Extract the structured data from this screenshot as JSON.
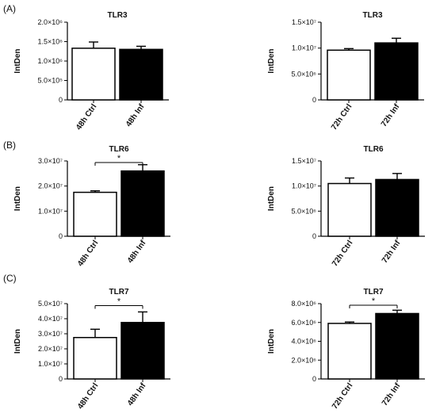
{
  "panels": [
    {
      "label": "(A)"
    },
    {
      "label": "(B)"
    },
    {
      "label": "(C)"
    }
  ],
  "chart_data": [
    {
      "type": "bar",
      "title": "TLR3",
      "ylabel": "IntDen",
      "categories": [
        "48h Ctrl",
        "48h Inf"
      ],
      "values": [
        1330000,
        1300000
      ],
      "errors": [
        160000,
        80000
      ],
      "colors": [
        "#ffffff",
        "#000000"
      ],
      "ylim": [
        0,
        2000000
      ],
      "yticks": [
        0,
        500000,
        1000000,
        1500000,
        2000000
      ],
      "ytick_labels": [
        "0",
        "5.0×10⁵",
        "1.0×10⁶",
        "1.5×10⁶",
        "2.0×10⁶"
      ],
      "significance": ""
    },
    {
      "type": "bar",
      "title": "TLR3",
      "ylabel": "IntDen",
      "categories": [
        "72h Ctrl",
        "72h Inf"
      ],
      "values": [
        9600000,
        11000000
      ],
      "errors": [
        300000,
        900000
      ],
      "colors": [
        "#ffffff",
        "#000000"
      ],
      "ylim": [
        0,
        15000000
      ],
      "yticks": [
        0,
        5000000,
        10000000,
        15000000
      ],
      "ytick_labels": [
        "0",
        "5.0×10⁶",
        "1.0×10⁷",
        "1.5×10⁷"
      ],
      "significance": ""
    },
    {
      "type": "bar",
      "title": "TLR6",
      "ylabel": "IntDen",
      "categories": [
        "48h Ctrl",
        "48h Inf"
      ],
      "values": [
        17500000,
        26000000
      ],
      "errors": [
        600000,
        2500000
      ],
      "colors": [
        "#ffffff",
        "#000000"
      ],
      "ylim": [
        0,
        30000000
      ],
      "yticks": [
        0,
        10000000,
        20000000,
        30000000
      ],
      "ytick_labels": [
        "0",
        "1.0×10⁷",
        "2.0×10⁷",
        "3.0×10⁷"
      ],
      "significance": "*"
    },
    {
      "type": "bar",
      "title": "TLR6",
      "ylabel": "IntDen",
      "categories": [
        "72h Ctrl",
        "72h Inf"
      ],
      "values": [
        10500000,
        11300000
      ],
      "errors": [
        1100000,
        1200000
      ],
      "colors": [
        "#ffffff",
        "#000000"
      ],
      "ylim": [
        0,
        15000000
      ],
      "yticks": [
        0,
        5000000,
        10000000,
        15000000
      ],
      "ytick_labels": [
        "0",
        "5.0×10⁶",
        "1.0×10⁷",
        "1.5×10⁷"
      ],
      "significance": ""
    },
    {
      "type": "bar",
      "title": "TLR7",
      "ylabel": "IntDen",
      "categories": [
        "48h Ctrl",
        "48h Inf"
      ],
      "values": [
        27500000,
        37500000
      ],
      "errors": [
        5500000,
        7000000
      ],
      "colors": [
        "#ffffff",
        "#000000"
      ],
      "ylim": [
        0,
        50000000
      ],
      "yticks": [
        0,
        10000000,
        20000000,
        30000000,
        40000000,
        50000000
      ],
      "ytick_labels": [
        "0",
        "1.0×10⁷",
        "2.0×10⁷",
        "3.0×10⁷",
        "4.0×10⁷",
        "5.0×10⁷"
      ],
      "significance": "*"
    },
    {
      "type": "bar",
      "title": "TLR7",
      "ylabel": "IntDen",
      "categories": [
        "72h Ctrl",
        "72h Inf"
      ],
      "values": [
        5900000,
        6950000
      ],
      "errors": [
        150000,
        350000
      ],
      "colors": [
        "#ffffff",
        "#000000"
      ],
      "ylim": [
        0,
        8000000
      ],
      "yticks": [
        0,
        2000000,
        4000000,
        6000000,
        8000000
      ],
      "ytick_labels": [
        "0",
        "2.0×10⁶",
        "4.0×10⁶",
        "6.0×10⁶",
        "8.0×10⁶"
      ],
      "significance": "*"
    }
  ]
}
